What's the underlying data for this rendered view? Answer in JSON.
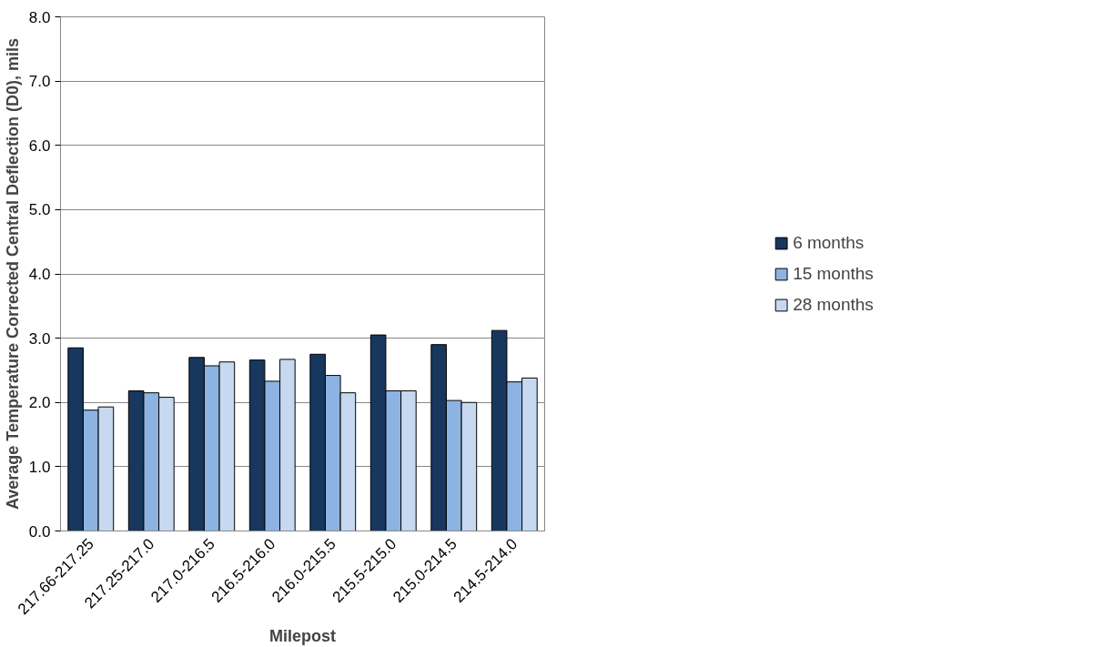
{
  "chart_data": {
    "type": "bar",
    "xlabel": "Milepost",
    "ylabel": "Average Temperature Corrected Central Deflection (D0), mils",
    "categories": [
      "217.66-217.25",
      "217.25-217.0",
      "217.0-216.5",
      "216.5-216.0",
      "216.0-215.5",
      "215.5-215.0",
      "215.0-214.5",
      "214.5-214.0"
    ],
    "series": [
      {
        "name": "6 months",
        "color": "#17375e",
        "values": [
          2.85,
          2.18,
          2.7,
          2.66,
          2.75,
          3.05,
          2.9,
          3.12
        ]
      },
      {
        "name": "15 months",
        "color": "#8db3e2",
        "values": [
          1.88,
          2.15,
          2.57,
          2.33,
          2.42,
          2.18,
          2.03,
          2.32
        ]
      },
      {
        "name": "28 months",
        "color": "#c6d9f1",
        "values": [
          1.93,
          2.08,
          2.63,
          2.67,
          2.15,
          2.18,
          2.0,
          2.38
        ]
      }
    ],
    "ylim": [
      0,
      8
    ],
    "yticks": [
      {
        "value": 0,
        "label": "0.0"
      },
      {
        "value": 1,
        "label": "1.0"
      },
      {
        "value": 2,
        "label": "2.0"
      },
      {
        "value": 3,
        "label": "3.0"
      },
      {
        "value": 4,
        "label": "4.0"
      },
      {
        "value": 5,
        "label": "5.0"
      },
      {
        "value": 6,
        "label": "6.0"
      },
      {
        "value": 7,
        "label": "7.0"
      },
      {
        "value": 8,
        "label": "8.0"
      }
    ],
    "grid": "y",
    "legend": "right"
  }
}
